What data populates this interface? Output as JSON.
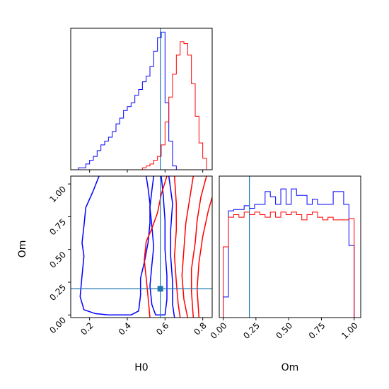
{
  "colors": {
    "series_a": "#0000ff",
    "series_b": "#ff0000",
    "truth": "#1f77b4",
    "frame": "#000000"
  },
  "chart_data": [
    {
      "id": "h0-hist",
      "type": "histogram",
      "title": "",
      "x_param": "H0",
      "xlim": [
        0.1,
        0.85
      ],
      "bins": [
        0.1,
        0.12,
        0.14,
        0.16,
        0.18,
        0.2,
        0.22,
        0.24,
        0.26,
        0.28,
        0.3,
        0.32,
        0.34,
        0.36,
        0.38,
        0.4,
        0.42,
        0.44,
        0.46,
        0.48,
        0.5,
        0.52,
        0.54,
        0.56,
        0.58,
        0.6,
        0.62,
        0.64,
        0.66,
        0.68,
        0.7,
        0.72,
        0.74,
        0.76,
        0.78,
        0.8,
        0.82,
        0.84
      ],
      "series": [
        {
          "color": "blue",
          "values": [
            0,
            0,
            0.01,
            0.01,
            0.03,
            0.05,
            0.07,
            0.1,
            0.13,
            0.15,
            0.17,
            0.2,
            0.24,
            0.27,
            0.31,
            0.33,
            0.35,
            0.39,
            0.42,
            0.46,
            0.49,
            0.54,
            0.62,
            0.69,
            0.72,
            0.35,
            0.15,
            0.02,
            0,
            0,
            0,
            0,
            0,
            0,
            0,
            0,
            0
          ]
        },
        {
          "color": "red",
          "values": [
            0,
            0,
            0,
            0,
            0,
            0,
            0,
            0,
            0,
            0,
            0,
            0,
            0,
            0,
            0,
            0,
            0,
            0,
            0,
            0.01,
            0.02,
            0.03,
            0.05,
            0.07,
            0.13,
            0.25,
            0.38,
            0.5,
            0.6,
            0.67,
            0.66,
            0.6,
            0.45,
            0.28,
            0.14,
            0.06,
            0
          ]
        }
      ],
      "truth_x": 0.575,
      "x_ticks": [
        0.2,
        0.4,
        0.6,
        0.8
      ],
      "show_tick_labels": false
    },
    {
      "id": "h0-om-contour",
      "type": "contour",
      "title": "",
      "xlim": [
        0.1,
        0.85
      ],
      "ylim": [
        -0.02,
        1.06
      ],
      "xlabel": "H0",
      "ylabel": "Om",
      "x_ticks": [
        0.2,
        0.4,
        0.6,
        0.8
      ],
      "x_tick_labels": [
        "0.2",
        "0.4",
        "0.6",
        "0.8"
      ],
      "y_ticks": [
        0.0,
        0.25,
        0.5,
        0.75,
        1.0
      ],
      "y_tick_labels": [
        "0.00",
        "0.25",
        "0.50",
        "0.75",
        "1.00"
      ],
      "truth": {
        "x": 0.575,
        "y": 0.2
      },
      "contours": [
        {
          "color": "blue",
          "points": [
            [
              0.25,
              1.06
            ],
            [
              0.22,
              0.95
            ],
            [
              0.18,
              0.82
            ],
            [
              0.17,
              0.68
            ],
            [
              0.16,
              0.55
            ],
            [
              0.17,
              0.45
            ],
            [
              0.16,
              0.3
            ],
            [
              0.15,
              0.14
            ],
            [
              0.17,
              0.04
            ],
            [
              0.23,
              0.01
            ],
            [
              0.3,
              0.0
            ],
            [
              0.42,
              0.0
            ],
            [
              0.46,
              0.03
            ],
            [
              0.47,
              0.15
            ],
            [
              0.47,
              0.28
            ],
            [
              0.49,
              0.4
            ],
            [
              0.51,
              0.55
            ],
            [
              0.52,
              0.7
            ],
            [
              0.52,
              0.85
            ],
            [
              0.51,
              0.97
            ],
            [
              0.5,
              1.06
            ]
          ]
        },
        {
          "color": "blue",
          "points": [
            [
              0.54,
              1.06
            ],
            [
              0.53,
              0.95
            ],
            [
              0.52,
              0.82
            ],
            [
              0.53,
              0.68
            ],
            [
              0.54,
              0.52
            ],
            [
              0.53,
              0.38
            ],
            [
              0.52,
              0.22
            ],
            [
              0.53,
              0.08
            ],
            [
              0.55,
              0.0
            ],
            [
              0.6,
              0.0
            ],
            [
              0.61,
              0.12
            ],
            [
              0.61,
              0.3
            ],
            [
              0.6,
              0.5
            ],
            [
              0.6,
              0.72
            ],
            [
              0.59,
              0.92
            ],
            [
              0.58,
              1.06
            ]
          ]
        },
        {
          "color": "blue",
          "points": [
            [
              0.62,
              1.06
            ],
            [
              0.64,
              0.85
            ],
            [
              0.63,
              0.65
            ],
            [
              0.63,
              0.45
            ],
            [
              0.64,
              0.25
            ],
            [
              0.64,
              0.08
            ],
            [
              0.65,
              -0.02
            ]
          ]
        },
        {
          "color": "red",
          "points": [
            [
              0.61,
              1.06
            ],
            [
              0.58,
              0.92
            ],
            [
              0.56,
              0.78
            ],
            [
              0.53,
              0.66
            ],
            [
              0.5,
              0.56
            ],
            [
              0.49,
              0.42
            ],
            [
              0.5,
              0.28
            ],
            [
              0.51,
              0.14
            ],
            [
              0.52,
              -0.02
            ]
          ]
        },
        {
          "color": "red",
          "points": [
            [
              0.65,
              1.06
            ],
            [
              0.66,
              0.85
            ],
            [
              0.66,
              0.65
            ],
            [
              0.65,
              0.45
            ],
            [
              0.66,
              0.25
            ],
            [
              0.67,
              0.08
            ],
            [
              0.68,
              -0.02
            ]
          ]
        },
        {
          "color": "red",
          "points": [
            [
              0.75,
              1.06
            ],
            [
              0.73,
              0.88
            ],
            [
              0.71,
              0.7
            ],
            [
              0.7,
              0.5
            ],
            [
              0.69,
              0.3
            ],
            [
              0.7,
              0.12
            ],
            [
              0.72,
              -0.02
            ]
          ]
        },
        {
          "color": "red",
          "points": [
            [
              0.82,
              1.06
            ],
            [
              0.79,
              0.9
            ],
            [
              0.77,
              0.72
            ],
            [
              0.76,
              0.55
            ],
            [
              0.74,
              0.35
            ],
            [
              0.74,
              0.18
            ],
            [
              0.75,
              -0.02
            ]
          ]
        },
        {
          "color": "red",
          "points": [
            [
              0.86,
              0.95
            ],
            [
              0.83,
              0.8
            ],
            [
              0.8,
              0.6
            ],
            [
              0.78,
              0.4
            ],
            [
              0.77,
              0.2
            ],
            [
              0.78,
              -0.02
            ]
          ]
        }
      ]
    },
    {
      "id": "om-hist",
      "type": "histogram",
      "title": "",
      "xlim": [
        -0.03,
        1.05
      ],
      "xlabel": "Om",
      "x_ticks": [
        0.0,
        0.25,
        0.5,
        0.75,
        1.0
      ],
      "x_tick_labels": [
        "0.00",
        "0.25",
        "0.50",
        "0.75",
        "1.00"
      ],
      "bins": [
        0.0,
        0.04,
        0.08,
        0.12,
        0.16,
        0.2,
        0.24,
        0.28,
        0.32,
        0.36,
        0.4,
        0.44,
        0.48,
        0.52,
        0.56,
        0.6,
        0.64,
        0.68,
        0.72,
        0.76,
        0.8,
        0.84,
        0.88,
        0.92,
        0.96,
        1.0
      ],
      "series": [
        {
          "color": "blue",
          "values": [
            0.16,
            0.83,
            0.84,
            0.84,
            0.87,
            0.85,
            0.88,
            0.88,
            0.98,
            0.94,
            0.88,
            1.0,
            0.88,
            1.0,
            0.95,
            0.95,
            0.88,
            0.92,
            0.88,
            0.88,
            0.88,
            0.98,
            0.98,
            0.88,
            0.56
          ]
        },
        {
          "color": "red",
          "values": [
            0.55,
            0.78,
            0.8,
            0.78,
            0.82,
            0.8,
            0.82,
            0.8,
            0.78,
            0.82,
            0.78,
            0.82,
            0.8,
            0.82,
            0.8,
            0.76,
            0.8,
            0.82,
            0.78,
            0.76,
            0.78,
            0.76,
            0.76,
            0.76,
            0.77
          ]
        }
      ],
      "truth_x": 0.2,
      "ylim": [
        0,
        1.1
      ]
    }
  ]
}
